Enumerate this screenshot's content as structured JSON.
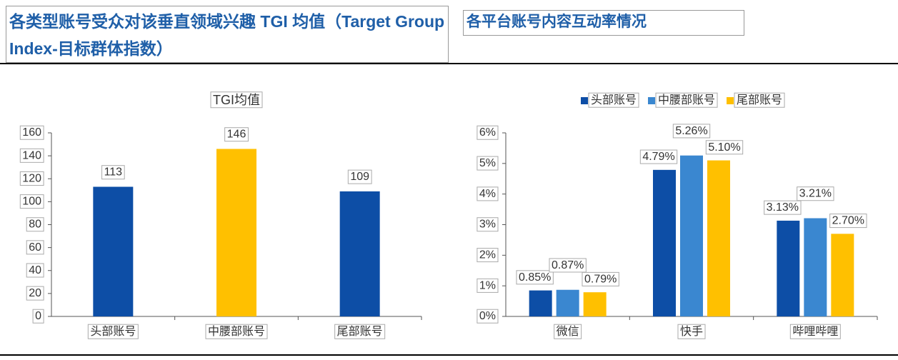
{
  "chart_data": [
    {
      "type": "bar",
      "heading": "各类型账号受众对该垂直领域兴趣  TGI  均值（Target Group Index-目标群体指数）",
      "title": "TGI均值",
      "categories": [
        "头部账号",
        "中腰部账号",
        "尾部账号"
      ],
      "values": [
        113,
        146,
        109
      ],
      "colors": [
        "#0d4ea6",
        "#ffc000",
        "#0d4ea6"
      ],
      "ylim": [
        0,
        160
      ],
      "yticks": [
        0,
        20,
        40,
        60,
        80,
        100,
        120,
        140,
        160
      ],
      "grid": false
    },
    {
      "type": "grouped_bar",
      "heading": "各平台账号内容互动率情况",
      "categories": [
        "微信",
        "快手",
        "哔哩哔哩"
      ],
      "series": [
        {
          "name": "头部账号",
          "color": "#0d4ea6",
          "values": [
            0.85,
            4.79,
            3.13
          ],
          "value_labels": [
            "0.85%",
            "4.79%",
            "3.13%"
          ]
        },
        {
          "name": "中腰部账号",
          "color": "#3a87d0",
          "values": [
            0.87,
            5.26,
            3.21
          ],
          "value_labels": [
            "0.87%",
            "5.26%",
            "3.21%"
          ]
        },
        {
          "name": "尾部账号",
          "color": "#ffc000",
          "values": [
            0.79,
            5.1,
            2.7
          ],
          "value_labels": [
            "0.79%",
            "5.10%",
            "2.70%"
          ]
        }
      ],
      "ylim": [
        0,
        6
      ],
      "yticks": [
        {
          "value": 0,
          "label": "0%"
        },
        {
          "value": 1,
          "label": "1%"
        },
        {
          "value": 2,
          "label": "2%"
        },
        {
          "value": 3,
          "label": "3%"
        },
        {
          "value": 4,
          "label": "4%"
        },
        {
          "value": 5,
          "label": "5%"
        },
        {
          "value": 6,
          "label": "6%"
        }
      ],
      "legend": "top",
      "grid": false
    }
  ]
}
